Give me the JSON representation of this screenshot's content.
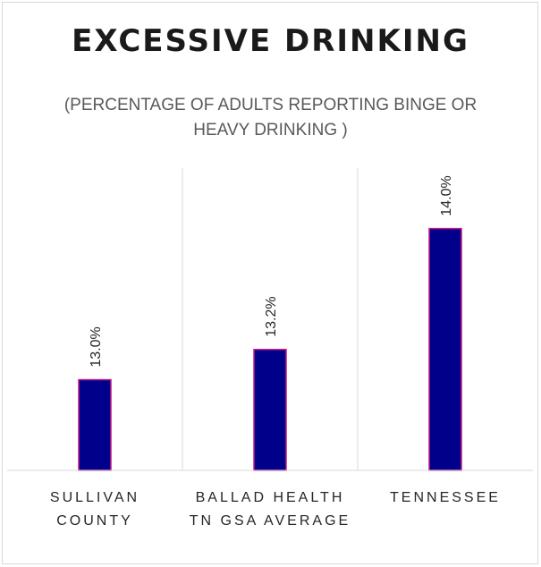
{
  "chart_data": {
    "type": "bar",
    "title": "EXCESSIVE DRINKING",
    "subtitle": "(PERCENTAGE OF ADULTS REPORTING BINGE OR HEAVY DRINKING )",
    "categories": [
      [
        "SULLIVAN",
        "COUNTY"
      ],
      [
        "BALLAD HEALTH",
        "TN GSA AVERAGE"
      ],
      [
        "TENNESSEE"
      ]
    ],
    "values": [
      13.0,
      13.2,
      14.0
    ],
    "data_labels": [
      "13.0%",
      "13.2%",
      "14.0%"
    ],
    "xlabel": "",
    "ylabel": "",
    "ylim": [
      12.4,
      14.4
    ],
    "grid": "vertical separators between categories",
    "legend": "none",
    "colors": {
      "bar_fill": "#00008b",
      "bar_edge": "#c71585",
      "grid": "#d9d9d9"
    }
  }
}
